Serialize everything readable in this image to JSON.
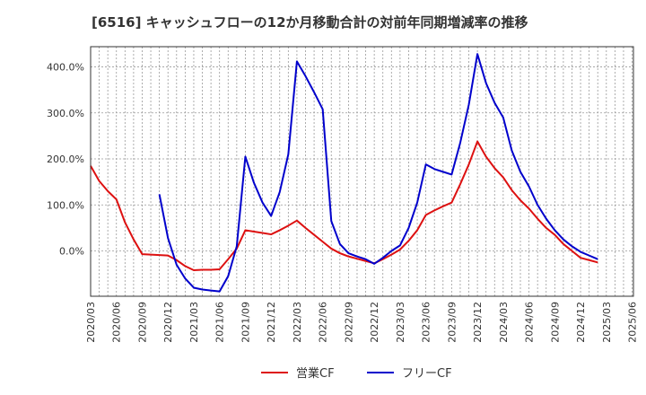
{
  "chart_data": {
    "type": "line",
    "title": "[6516]  キャッシュフローの12か月移動合計の対前年同期増減率の推移",
    "xlabel": "",
    "ylabel": "",
    "ylim": [
      -100,
      440
    ],
    "yticks": [
      0,
      100,
      200,
      300,
      400
    ],
    "ytick_labels": [
      "0.0%",
      "100.0%",
      "200.0%",
      "300.0%",
      "400.0%"
    ],
    "xtick_labels": [
      "2020/03",
      "2020/06",
      "2020/09",
      "2020/12",
      "2021/03",
      "2021/06",
      "2021/09",
      "2021/12",
      "2022/03",
      "2022/06",
      "2022/09",
      "2022/12",
      "2023/03",
      "2023/06",
      "2023/09",
      "2023/12",
      "2024/03",
      "2024/06",
      "2024/09",
      "2024/12",
      "2025/03",
      "2025/06"
    ],
    "grid": true,
    "legend_position": "bottom-center",
    "series": [
      {
        "name": "営業CF",
        "color": "#dd1111",
        "values": [
          185,
          152,
          130,
          112,
          62,
          25,
          -7,
          -8,
          -9,
          -10,
          -20,
          -33,
          -42,
          -41,
          -41,
          -40,
          -18,
          5,
          45,
          42,
          39,
          36,
          45,
          55,
          66,
          50,
          35,
          20,
          5,
          -5,
          -12,
          -17,
          -22,
          -27,
          -18,
          -8,
          3,
          22,
          45,
          78,
          88,
          97,
          105,
          145,
          188,
          238,
          205,
          180,
          160,
          132,
          110,
          92,
          70,
          50,
          35,
          15,
          0,
          -15,
          -20,
          -25
        ]
      },
      {
        "name": "フリーCF",
        "color": "#0000cc",
        "values": [
          null,
          null,
          null,
          null,
          null,
          null,
          null,
          null,
          123,
          28,
          -30,
          -60,
          -80,
          -84,
          -86,
          -88,
          -55,
          10,
          205,
          148,
          105,
          76,
          128,
          210,
          412,
          380,
          345,
          308,
          65,
          15,
          -5,
          -12,
          -18,
          -28,
          -15,
          0,
          12,
          50,
          105,
          188,
          178,
          172,
          166,
          235,
          318,
          428,
          365,
          322,
          290,
          218,
          172,
          140,
          100,
          70,
          45,
          25,
          10,
          -2,
          -10,
          -18
        ]
      }
    ]
  }
}
